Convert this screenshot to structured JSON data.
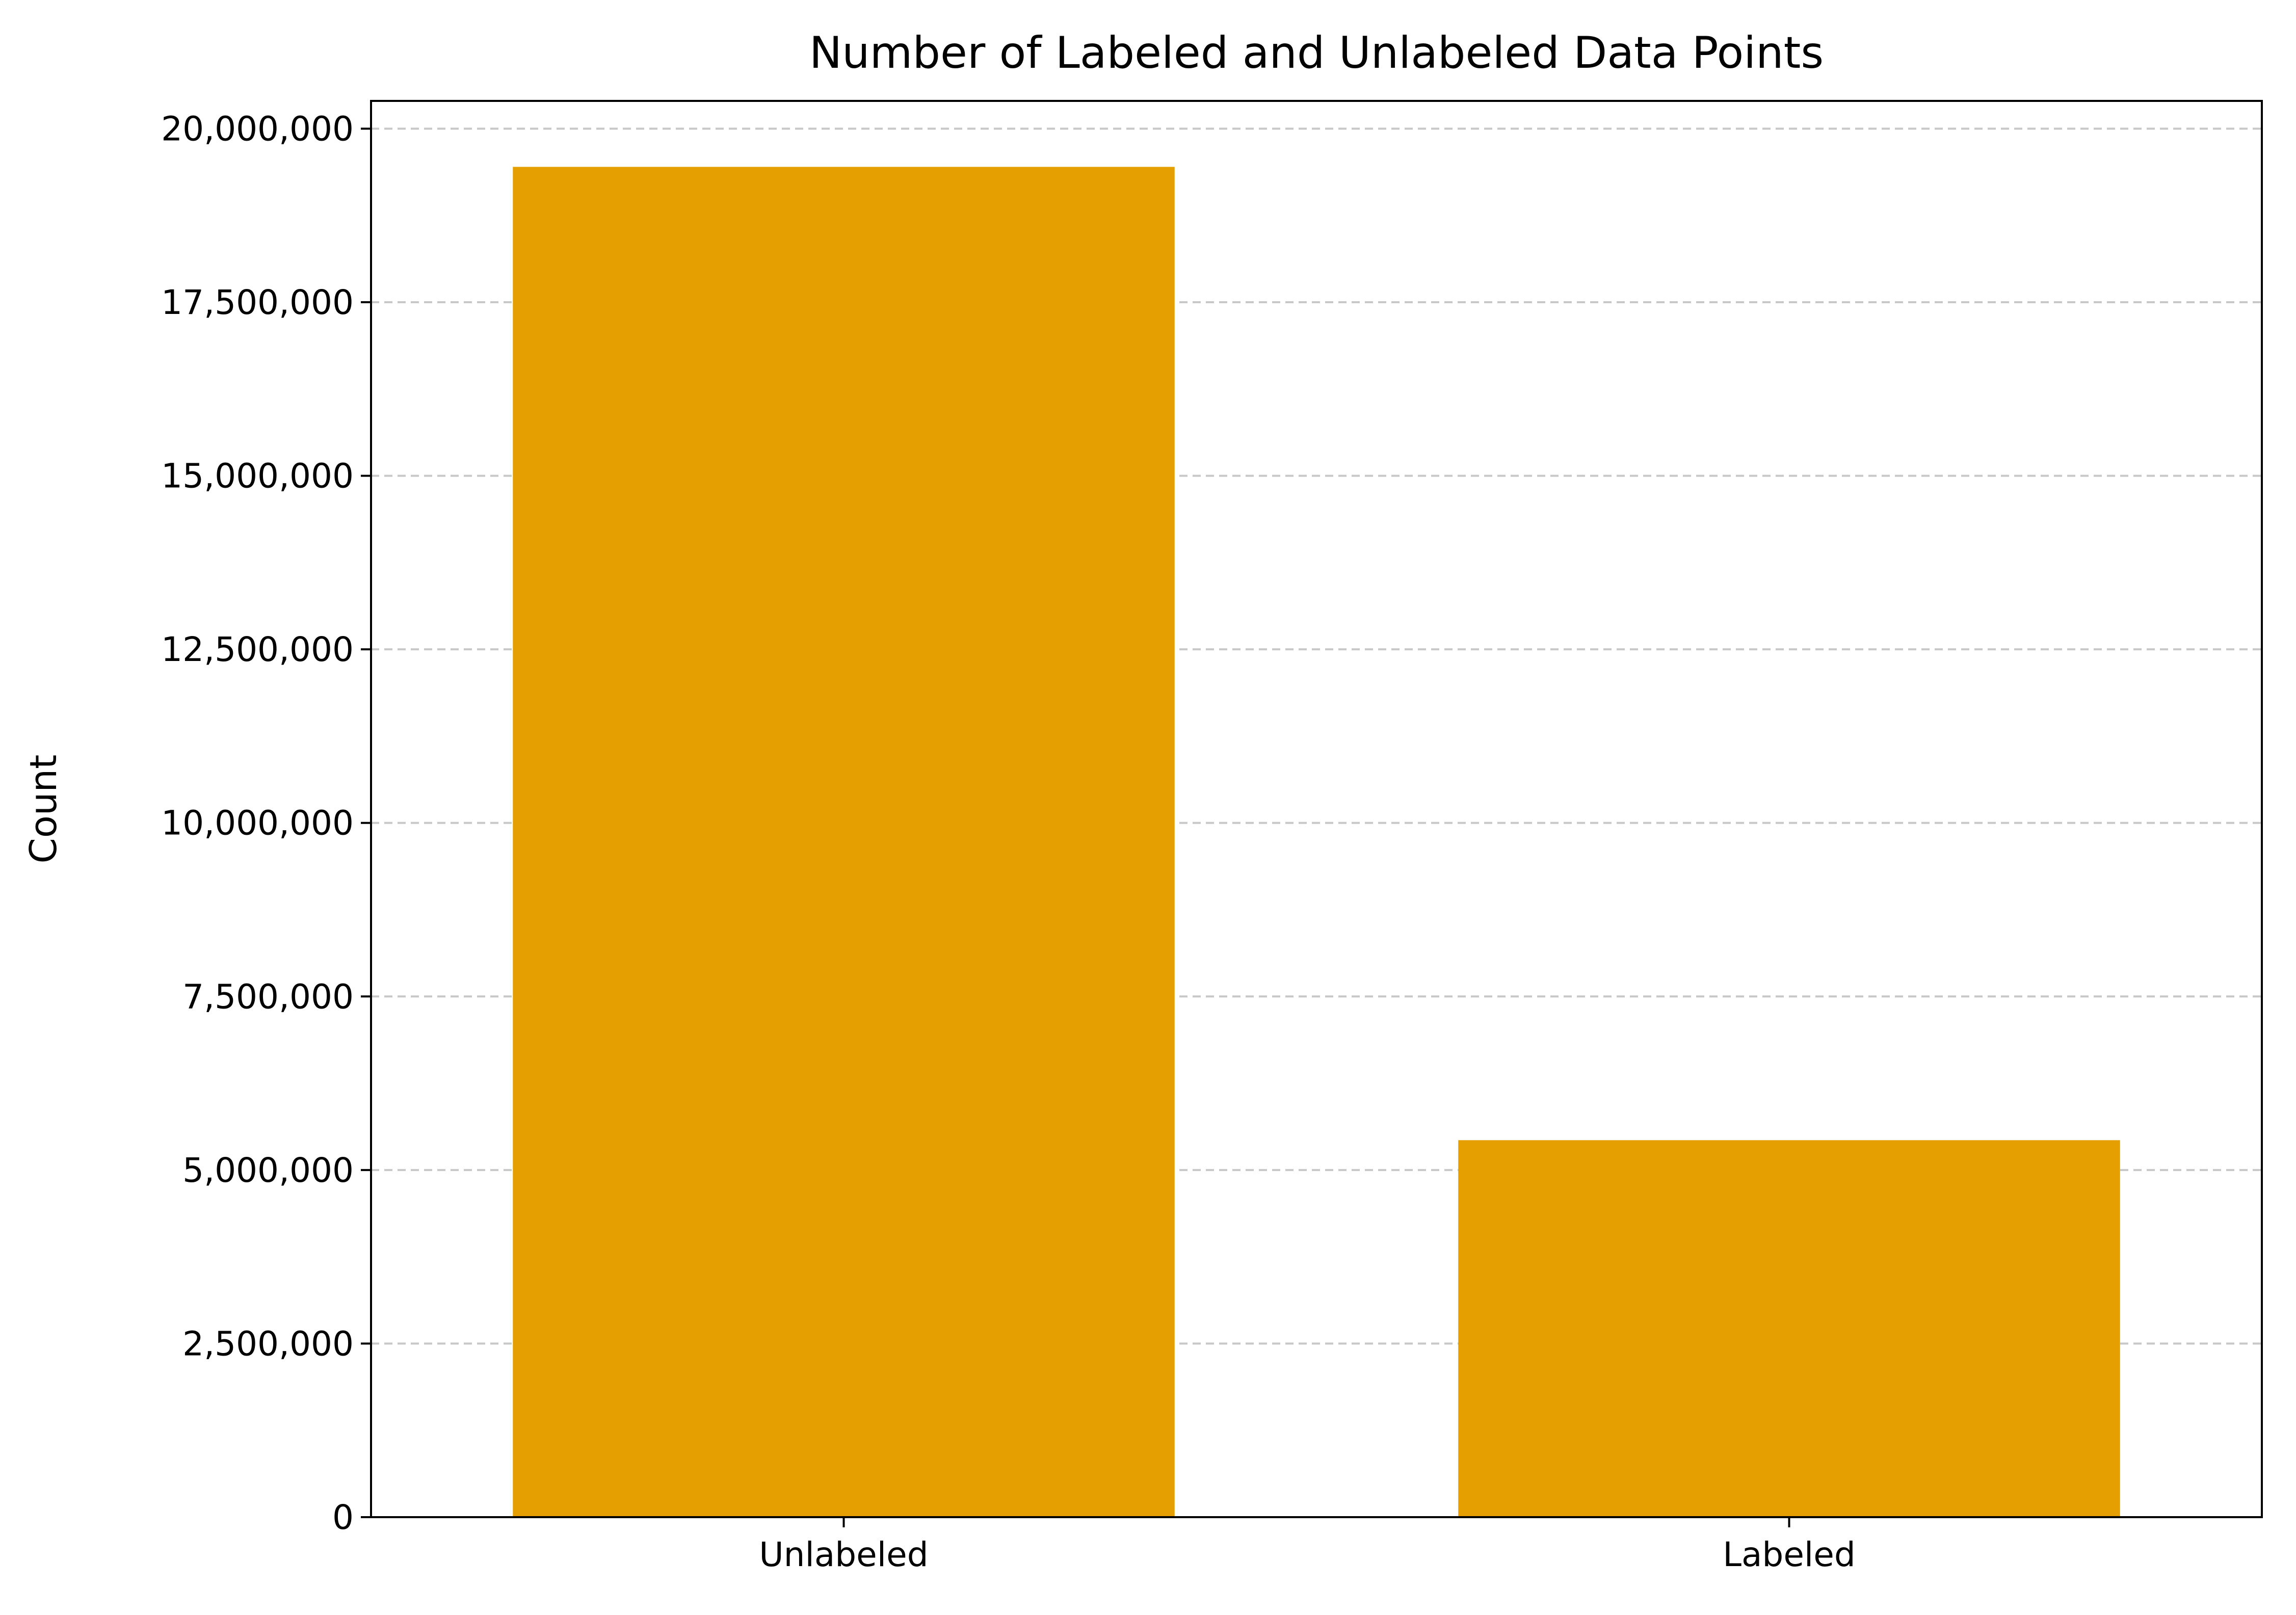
{
  "chart_data": {
    "type": "bar",
    "title": "Number of Labeled and Unlabeled Data Points",
    "xlabel": "",
    "ylabel": "Count",
    "categories": [
      "Unlabeled",
      "Labeled"
    ],
    "values": [
      19450000,
      5430000
    ],
    "ylim": [
      0,
      20400000
    ],
    "yticks": [
      0,
      2500000,
      5000000,
      7500000,
      10000000,
      12500000,
      15000000,
      17500000,
      20000000
    ],
    "ytick_labels": [
      "0",
      "2,500,000",
      "5,000,000",
      "7,500,000",
      "10,000,000",
      "12,500,000",
      "15,000,000",
      "17,500,000",
      "20,000,000"
    ],
    "grid": {
      "axis": "y",
      "style": "dashed"
    },
    "colors": {
      "bar": "#E69F00",
      "grid": "#c8c8c8",
      "axis": "#000000"
    }
  }
}
